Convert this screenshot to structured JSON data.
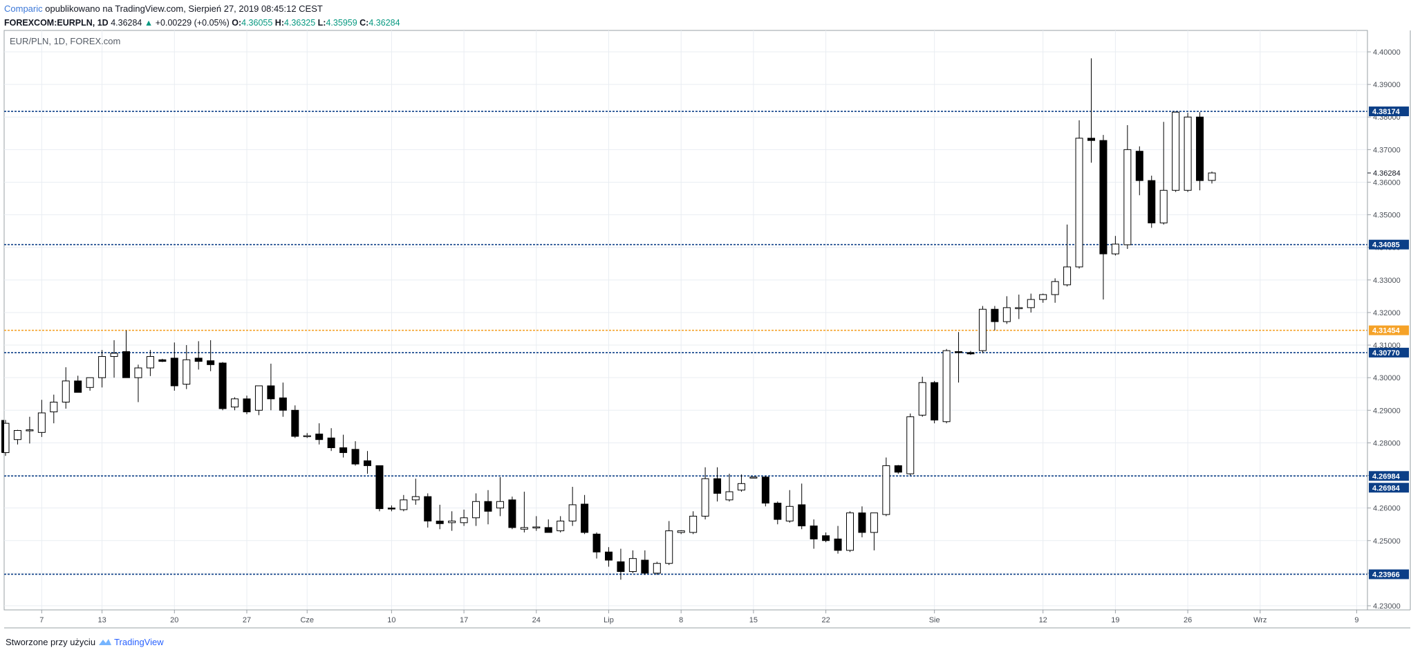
{
  "header": {
    "brand": "Comparic",
    "published": "opublikowano na TradingView.com, Sierpień 27, 2019 08:45:12 CEST",
    "symbol": "FOREXCOM:EURPLN, 1D",
    "last": "4.36284",
    "change_arrow": "▲",
    "change": "+0.00229 (+0.05%)",
    "o_label": "O:",
    "o": "4.36055",
    "h_label": "H:",
    "h": "4.36325",
    "l_label": "L:",
    "l": "4.35959",
    "c_label": "C:",
    "c": "4.36284"
  },
  "chart_data": {
    "type": "candlestick",
    "title": "EUR/PLN, 1D, FOREX.com",
    "ylim": [
      4.2285,
      4.4125
    ],
    "y_ticks": [
      4.23,
      4.24,
      4.25,
      4.26,
      4.27,
      4.28,
      4.29,
      4.3,
      4.31,
      4.32,
      4.33,
      4.34,
      4.35,
      4.36,
      4.37,
      4.38,
      4.39,
      4.4
    ],
    "y_tick_labels": [
      "4.23000",
      "4.24000",
      "4.25000",
      "4.26000",
      "4.27000",
      "4.28000",
      "4.29000",
      "4.30000",
      "4.31000",
      "4.32000",
      "4.33000",
      "4.34000",
      "4.35000",
      "4.36000",
      "4.37000",
      "4.38000",
      "4.39000",
      "4.40000"
    ],
    "x_ticks": [
      {
        "bar": 3,
        "label": "7"
      },
      {
        "bar": 8,
        "label": "13"
      },
      {
        "bar": 14,
        "label": "20"
      },
      {
        "bar": 20,
        "label": "27"
      },
      {
        "bar": 25,
        "label": "Cze"
      },
      {
        "bar": 32,
        "label": "10"
      },
      {
        "bar": 38,
        "label": "17"
      },
      {
        "bar": 44,
        "label": "24"
      },
      {
        "bar": 50,
        "label": "Lip"
      },
      {
        "bar": 56,
        "label": "8"
      },
      {
        "bar": 62,
        "label": "15"
      },
      {
        "bar": 68,
        "label": "22"
      },
      {
        "bar": 77,
        "label": "Sie"
      },
      {
        "bar": 86,
        "label": "12"
      },
      {
        "bar": 92,
        "label": "19"
      },
      {
        "bar": 98,
        "label": "26"
      },
      {
        "bar": 104,
        "label": "Wrz"
      },
      {
        "bar": 112,
        "label": "9"
      }
    ],
    "candles": [
      {
        "o": 4.277,
        "h": 4.287,
        "l": 4.276,
        "c": 4.286
      },
      {
        "o": 4.281,
        "h": 4.284,
        "l": 4.2795,
        "c": 4.2838
      },
      {
        "o": 4.2838,
        "h": 4.288,
        "l": 4.2798,
        "c": 4.284
      },
      {
        "o": 4.2832,
        "h": 4.2932,
        "l": 4.2818,
        "c": 4.2892
      },
      {
        "o": 4.2895,
        "h": 4.2948,
        "l": 4.286,
        "c": 4.2925
      },
      {
        "o": 4.2925,
        "h": 4.3032,
        "l": 4.2905,
        "c": 4.299
      },
      {
        "o": 4.299,
        "h": 4.3006,
        "l": 4.2958,
        "c": 4.2955
      },
      {
        "o": 4.297,
        "h": 4.3,
        "l": 4.296,
        "c": 4.3
      },
      {
        "o": 4.3,
        "h": 4.3085,
        "l": 4.297,
        "c": 4.3065
      },
      {
        "o": 4.3065,
        "h": 4.3115,
        "l": 4.3,
        "c": 4.3075
      },
      {
        "o": 4.308,
        "h": 4.3145,
        "l": 4.3,
        "c": 4.3
      },
      {
        "o": 4.3,
        "h": 4.304,
        "l": 4.2925,
        "c": 4.303
      },
      {
        "o": 4.303,
        "h": 4.3085,
        "l": 4.3005,
        "c": 4.3065
      },
      {
        "o": 4.3055,
        "h": 4.3058,
        "l": 4.3048,
        "c": 4.305
      },
      {
        "o": 4.306,
        "h": 4.3108,
        "l": 4.296,
        "c": 4.2975
      },
      {
        "o": 4.298,
        "h": 4.31,
        "l": 4.2965,
        "c": 4.3055
      },
      {
        "o": 4.306,
        "h": 4.3112,
        "l": 4.3025,
        "c": 4.305
      },
      {
        "o": 4.3052,
        "h": 4.3115,
        "l": 4.302,
        "c": 4.304
      },
      {
        "o": 4.3045,
        "h": 4.3048,
        "l": 4.29,
        "c": 4.2905
      },
      {
        "o": 4.291,
        "h": 4.294,
        "l": 4.29,
        "c": 4.2935
      },
      {
        "o": 4.2935,
        "h": 4.2945,
        "l": 4.2888,
        "c": 4.2895
      },
      {
        "o": 4.29,
        "h": 4.2975,
        "l": 4.2885,
        "c": 4.2975
      },
      {
        "o": 4.2975,
        "h": 4.3043,
        "l": 4.29,
        "c": 4.2935
      },
      {
        "o": 4.2938,
        "h": 4.2985,
        "l": 4.288,
        "c": 4.29
      },
      {
        "o": 4.29,
        "h": 4.2915,
        "l": 4.2815,
        "c": 4.282
      },
      {
        "o": 4.2822,
        "h": 4.283,
        "l": 4.2815,
        "c": 4.2822
      },
      {
        "o": 4.2827,
        "h": 4.286,
        "l": 4.2795,
        "c": 4.281
      },
      {
        "o": 4.2815,
        "h": 4.2845,
        "l": 4.2775,
        "c": 4.2785
      },
      {
        "o": 4.2785,
        "h": 4.2825,
        "l": 4.2755,
        "c": 4.277
      },
      {
        "o": 4.278,
        "h": 4.2805,
        "l": 4.273,
        "c": 4.2735
      },
      {
        "o": 4.2745,
        "h": 4.2775,
        "l": 4.2705,
        "c": 4.273
      },
      {
        "o": 4.273,
        "h": 4.273,
        "l": 4.259,
        "c": 4.2598
      },
      {
        "o": 4.26,
        "h": 4.2608,
        "l": 4.259,
        "c": 4.2598
      },
      {
        "o": 4.2595,
        "h": 4.264,
        "l": 4.259,
        "c": 4.2625
      },
      {
        "o": 4.2625,
        "h": 4.269,
        "l": 4.261,
        "c": 4.2635
      },
      {
        "o": 4.2635,
        "h": 4.2645,
        "l": 4.254,
        "c": 4.256
      },
      {
        "o": 4.256,
        "h": 4.261,
        "l": 4.2535,
        "c": 4.2552
      },
      {
        "o": 4.2555,
        "h": 4.259,
        "l": 4.253,
        "c": 4.256
      },
      {
        "o": 4.2555,
        "h": 4.2595,
        "l": 4.2545,
        "c": 4.257
      },
      {
        "o": 4.257,
        "h": 4.2645,
        "l": 4.2545,
        "c": 4.262
      },
      {
        "o": 4.262,
        "h": 4.2655,
        "l": 4.255,
        "c": 4.259
      },
      {
        "o": 4.26,
        "h": 4.2695,
        "l": 4.2575,
        "c": 4.262
      },
      {
        "o": 4.2625,
        "h": 4.2635,
        "l": 4.2535,
        "c": 4.254
      },
      {
        "o": 4.2535,
        "h": 4.265,
        "l": 4.2525,
        "c": 4.254
      },
      {
        "o": 4.254,
        "h": 4.2575,
        "l": 4.253,
        "c": 4.2542
      },
      {
        "o": 4.254,
        "h": 4.2565,
        "l": 4.2525,
        "c": 4.2525
      },
      {
        "o": 4.253,
        "h": 4.2575,
        "l": 4.2525,
        "c": 4.256
      },
      {
        "o": 4.256,
        "h": 4.2665,
        "l": 4.2545,
        "c": 4.261
      },
      {
        "o": 4.2612,
        "h": 4.264,
        "l": 4.252,
        "c": 4.2525
      },
      {
        "o": 4.252,
        "h": 4.2525,
        "l": 4.2445,
        "c": 4.2465
      },
      {
        "o": 4.2465,
        "h": 4.248,
        "l": 4.242,
        "c": 4.244
      },
      {
        "o": 4.2435,
        "h": 4.2475,
        "l": 4.238,
        "c": 4.2405
      },
      {
        "o": 4.2405,
        "h": 4.247,
        "l": 4.24,
        "c": 4.2445
      },
      {
        "o": 4.244,
        "h": 4.247,
        "l": 4.2395,
        "c": 4.24
      },
      {
        "o": 4.24,
        "h": 4.2435,
        "l": 4.2395,
        "c": 4.243
      },
      {
        "o": 4.243,
        "h": 4.256,
        "l": 4.2425,
        "c": 4.253
      },
      {
        "o": 4.2525,
        "h": 4.2532,
        "l": 4.252,
        "c": 4.253
      },
      {
        "o": 4.2525,
        "h": 4.259,
        "l": 4.252,
        "c": 4.2575
      },
      {
        "o": 4.2575,
        "h": 4.2725,
        "l": 4.2565,
        "c": 4.269
      },
      {
        "o": 4.269,
        "h": 4.2725,
        "l": 4.262,
        "c": 4.2645
      },
      {
        "o": 4.2625,
        "h": 4.2705,
        "l": 4.262,
        "c": 4.265
      },
      {
        "o": 4.2655,
        "h": 4.2703,
        "l": 4.265,
        "c": 4.2675
      },
      {
        "o": 4.2695,
        "h": 4.2697,
        "l": 4.2692,
        "c": 4.2695
      },
      {
        "o": 4.2695,
        "h": 4.2698,
        "l": 4.2605,
        "c": 4.2615
      },
      {
        "o": 4.2615,
        "h": 4.262,
        "l": 4.255,
        "c": 4.2565
      },
      {
        "o": 4.256,
        "h": 4.2655,
        "l": 4.2555,
        "c": 4.2605
      },
      {
        "o": 4.261,
        "h": 4.2675,
        "l": 4.2535,
        "c": 4.2545
      },
      {
        "o": 4.2545,
        "h": 4.2565,
        "l": 4.2475,
        "c": 4.2505
      },
      {
        "o": 4.2515,
        "h": 4.2525,
        "l": 4.2495,
        "c": 4.25
      },
      {
        "o": 4.2505,
        "h": 4.2545,
        "l": 4.246,
        "c": 4.247
      },
      {
        "o": 4.247,
        "h": 4.259,
        "l": 4.2465,
        "c": 4.2585
      },
      {
        "o": 4.2585,
        "h": 4.2605,
        "l": 4.251,
        "c": 4.2525
      },
      {
        "o": 4.2525,
        "h": 4.2585,
        "l": 4.247,
        "c": 4.2585
      },
      {
        "o": 4.258,
        "h": 4.2755,
        "l": 4.2575,
        "c": 4.273
      },
      {
        "o": 4.273,
        "h": 4.2732,
        "l": 4.2705,
        "c": 4.271
      },
      {
        "o": 4.2705,
        "h": 4.289,
        "l": 4.27,
        "c": 4.288
      },
      {
        "o": 4.2885,
        "h": 4.3003,
        "l": 4.288,
        "c": 4.2985
      },
      {
        "o": 4.2985,
        "h": 4.299,
        "l": 4.286,
        "c": 4.287
      },
      {
        "o": 4.2865,
        "h": 4.3088,
        "l": 4.286,
        "c": 4.3083
      },
      {
        "o": 4.308,
        "h": 4.314,
        "l": 4.2985,
        "c": 4.3077
      },
      {
        "o": 4.3077,
        "h": 4.3082,
        "l": 4.307,
        "c": 4.3073
      },
      {
        "o": 4.3083,
        "h": 4.322,
        "l": 4.3075,
        "c": 4.321
      },
      {
        "o": 4.321,
        "h": 4.322,
        "l": 4.3145,
        "c": 4.3172
      },
      {
        "o": 4.3172,
        "h": 4.325,
        "l": 4.3165,
        "c": 4.3215
      },
      {
        "o": 4.3213,
        "h": 4.3255,
        "l": 4.318,
        "c": 4.3215
      },
      {
        "o": 4.3215,
        "h": 4.3258,
        "l": 4.32,
        "c": 4.324
      },
      {
        "o": 4.324,
        "h": 4.3258,
        "l": 4.323,
        "c": 4.3255
      },
      {
        "o": 4.3255,
        "h": 4.3305,
        "l": 4.323,
        "c": 4.3295
      },
      {
        "o": 4.3285,
        "h": 4.347,
        "l": 4.328,
        "c": 4.334
      },
      {
        "o": 4.334,
        "h": 4.379,
        "l": 4.3335,
        "c": 4.3735
      },
      {
        "o": 4.3735,
        "h": 4.398,
        "l": 4.366,
        "c": 4.3728
      },
      {
        "o": 4.3728,
        "h": 4.3745,
        "l": 4.324,
        "c": 4.338
      },
      {
        "o": 4.338,
        "h": 4.3435,
        "l": 4.3375,
        "c": 4.341
      },
      {
        "o": 4.3408,
        "h": 4.3775,
        "l": 4.3395,
        "c": 4.37
      },
      {
        "o": 4.3695,
        "h": 4.371,
        "l": 4.356,
        "c": 4.3605
      },
      {
        "o": 4.3605,
        "h": 4.362,
        "l": 4.346,
        "c": 4.3475
      },
      {
        "o": 4.3475,
        "h": 4.3785,
        "l": 4.347,
        "c": 4.3575
      },
      {
        "o": 4.3575,
        "h": 4.3817,
        "l": 4.357,
        "c": 4.3815
      },
      {
        "o": 4.3575,
        "h": 4.3813,
        "l": 4.357,
        "c": 4.38
      },
      {
        "o": 4.38,
        "h": 4.3815,
        "l": 4.3575,
        "c": 4.3605
      },
      {
        "o": 4.36055,
        "h": 4.36325,
        "l": 4.35959,
        "c": 4.36284
      }
    ],
    "hlines": [
      {
        "value": 4.38174,
        "label": "4.38174",
        "color": "#0c3f87"
      },
      {
        "value": 4.34085,
        "label": "4.34085",
        "color": "#0c3f87"
      },
      {
        "value": 4.31454,
        "label": "4.31454",
        "color": "#f5a228"
      },
      {
        "value": 4.3077,
        "label": "4.30770",
        "color": "#0c3f87"
      },
      {
        "value": 4.26984,
        "label": "4.26984",
        "color": "#0c3f87"
      },
      {
        "value": 4.23966,
        "label": "4.23966",
        "color": "#0c3f87"
      }
    ],
    "extra_price_labels": [
      {
        "value": 4.26984,
        "label": "4.26984",
        "offset_rows": 1
      }
    ],
    "current_price": {
      "value": 4.36284,
      "label": "4.36284"
    },
    "grid": true
  },
  "footer": {
    "created": "Stworzone przy użyciu",
    "brand": "TradingView"
  }
}
